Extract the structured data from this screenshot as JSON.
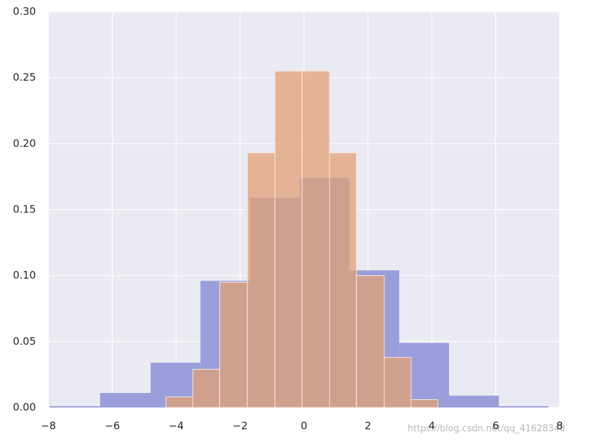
{
  "chart_data": {
    "type": "histogram",
    "series": [
      {
        "color": "#9a9fdc",
        "bins": [
          -7.96,
          -6.38,
          -4.8,
          -3.24,
          -1.69,
          -0.13,
          1.43,
          2.98,
          4.54,
          6.1,
          7.65
        ],
        "values": [
          0.001,
          0.011,
          0.034,
          0.096,
          0.159,
          0.174,
          0.104,
          0.049,
          0.009,
          0.001
        ]
      },
      {
        "color": "#e2a075",
        "bins": [
          -4.32,
          -3.48,
          -2.64,
          -1.77,
          -0.91,
          -0.06,
          0.8,
          1.64,
          2.51,
          3.35,
          4.19
        ],
        "values": [
          0.008,
          0.029,
          0.095,
          0.193,
          0.255,
          0.255,
          0.193,
          0.1,
          0.038,
          0.006
        ]
      }
    ],
    "xlim": [
      -8,
      8
    ],
    "xticks": [
      {
        "value": -8,
        "label": "−8"
      },
      {
        "value": -6,
        "label": "−6"
      },
      {
        "value": -4,
        "label": "−4"
      },
      {
        "value": -2,
        "label": "−2"
      },
      0,
      2,
      4,
      6,
      8
    ],
    "ylim": [
      0,
      0.3
    ],
    "yticks": [
      {
        "value": 0,
        "label": "0.00"
      },
      {
        "value": 0.05,
        "label": "0.05"
      },
      {
        "value": 0.1,
        "label": "0.10"
      },
      {
        "value": 0.15,
        "label": "0.15"
      },
      {
        "value": 0.2,
        "label": "0.20"
      },
      {
        "value": 0.25,
        "label": "0.25"
      },
      {
        "value": 0.3,
        "label": "0.30"
      }
    ],
    "grid": true,
    "watermark": "https://blog.csdn.net/qq_41628348"
  }
}
